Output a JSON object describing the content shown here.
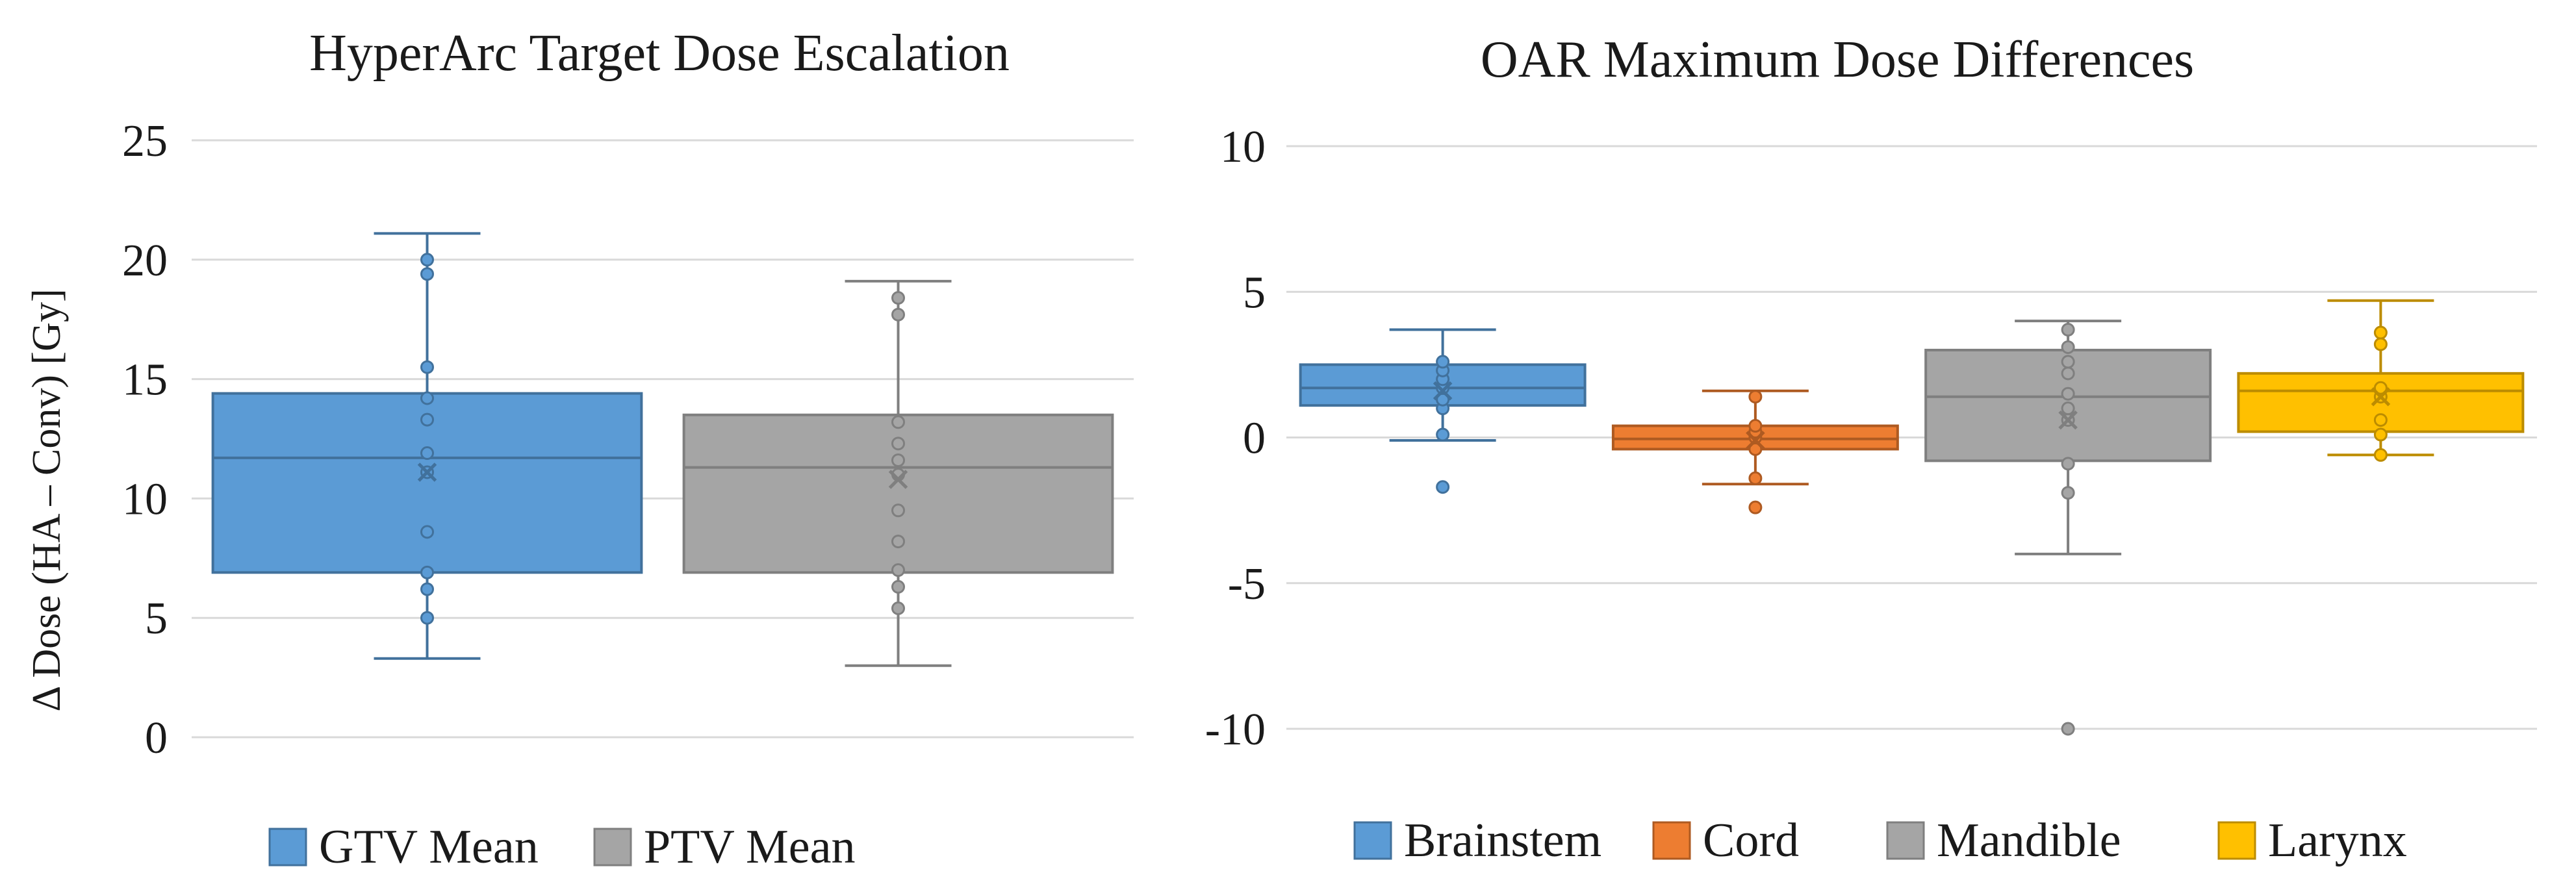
{
  "chart_data": [
    {
      "type": "box",
      "title": "HyperArc Target Dose Escalation",
      "ylabel": "Δ Dose (HA – Conv) [Gy]",
      "xlabel": "",
      "ylim": [
        0,
        25
      ],
      "yticks": [
        0,
        5,
        10,
        15,
        20,
        25
      ],
      "grid": true,
      "legend": "bottom",
      "series": [
        {
          "name": "GTV Mean",
          "color": "#5b9bd5",
          "stroke": "#41719c",
          "whisker_low": 3.3,
          "q1": 6.9,
          "median": 11.7,
          "q3": 14.4,
          "whisker_high": 21.1,
          "mean": 11.1,
          "points": [
            5.0,
            6.2,
            6.9,
            8.6,
            11.1,
            11.9,
            13.3,
            14.2,
            15.5,
            19.4,
            20.0
          ]
        },
        {
          "name": "PTV Mean",
          "color": "#a5a5a5",
          "stroke": "#7f7f7f",
          "whisker_low": 3.0,
          "q1": 6.9,
          "median": 11.3,
          "q3": 13.5,
          "whisker_high": 19.1,
          "mean": 10.8,
          "points": [
            5.4,
            6.3,
            7.0,
            8.2,
            9.5,
            11.0,
            11.6,
            12.3,
            13.2,
            17.7,
            18.4
          ]
        }
      ]
    },
    {
      "type": "box",
      "title": "OAR Maximum Dose Differences",
      "xlabel": "",
      "ylabel": "",
      "ylim": [
        -10,
        10
      ],
      "yticks": [
        -10,
        -5,
        0,
        5,
        10
      ],
      "grid": true,
      "legend": "bottom",
      "series": [
        {
          "name": "Brainstem",
          "color": "#5b9bd5",
          "stroke": "#41719c",
          "whisker_low": -0.1,
          "q1": 1.1,
          "median": 1.7,
          "q3": 2.5,
          "whisker_high": 3.7,
          "mean": 1.6,
          "points": [
            -1.7,
            0.1,
            1.0,
            1.3,
            1.7,
            2.0,
            2.3,
            2.6
          ]
        },
        {
          "name": "Cord",
          "color": "#ed7d31",
          "stroke": "#ae5a21",
          "whisker_low": -1.6,
          "q1": -0.4,
          "median": -0.05,
          "q3": 0.4,
          "whisker_high": 1.6,
          "mean": -0.1,
          "points": [
            -2.4,
            -1.4,
            -0.4,
            0.0,
            0.2,
            0.4,
            1.4
          ]
        },
        {
          "name": "Mandible",
          "color": "#a5a5a5",
          "stroke": "#7f7f7f",
          "whisker_low": -4.0,
          "q1": -0.8,
          "median": 1.4,
          "q3": 3.0,
          "whisker_high": 4.0,
          "mean": 0.6,
          "points": [
            -10.0,
            -1.9,
            -0.9,
            0.6,
            1.0,
            1.5,
            2.2,
            2.6,
            3.1,
            3.7
          ]
        },
        {
          "name": "Larynx",
          "color": "#ffc000",
          "stroke": "#bc8c00",
          "whisker_low": -0.6,
          "q1": 0.2,
          "median": 1.6,
          "q3": 2.2,
          "whisker_high": 4.7,
          "mean": 1.4,
          "points": [
            -0.6,
            0.1,
            0.6,
            1.4,
            1.7,
            3.2,
            3.6
          ]
        }
      ]
    }
  ]
}
